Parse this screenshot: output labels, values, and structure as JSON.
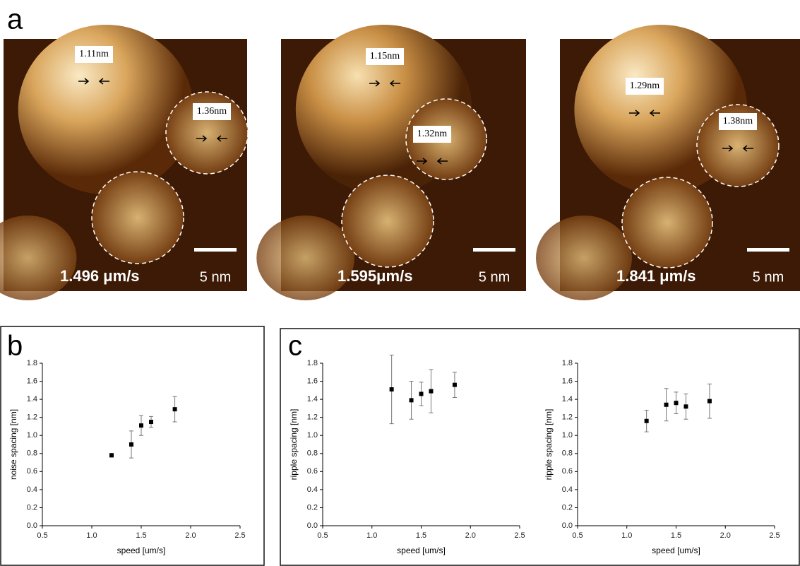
{
  "panel_labels": [
    "a",
    "b",
    "c"
  ],
  "images": [
    {
      "measures": [
        "1.11nm",
        "1.36nm"
      ],
      "speed": "1.496 μm/s",
      "scale": "5 nm"
    },
    {
      "measures": [
        "1.15nm",
        "1.32nm"
      ],
      "speed": "1.595μm/s",
      "scale": "5 nm"
    },
    {
      "measures": [
        "1.29nm",
        "1.38nm"
      ],
      "speed": "1.841 μm/s",
      "scale": "5 nm"
    }
  ],
  "chart_data": [
    {
      "type": "scatter",
      "xlabel": "speed [um/s]",
      "ylabel": "noise spacing [nm]",
      "color": "#000000",
      "x": [
        1.2,
        1.4,
        1.5,
        1.6,
        1.84
      ],
      "values": [
        0.78,
        0.9,
        1.11,
        1.15,
        1.29
      ],
      "errors": [
        0.02,
        0.15,
        0.11,
        0.06,
        0.14
      ],
      "xlim": [
        0.5,
        2.5
      ],
      "xticks": [
        0.5,
        {
          "value": 1,
          "label": "1.0"
        },
        1.5,
        {
          "value": 2,
          "label": "2.0"
        },
        2.5
      ],
      "ylim": [
        0,
        1.8
      ],
      "yticks": [
        {
          "value": 0,
          "label": "0.0"
        },
        0.2,
        0.4,
        0.6,
        0.8,
        {
          "value": 1,
          "label": "1.0"
        },
        1.2,
        1.4,
        1.6,
        1.8
      ]
    },
    {
      "type": "scatter",
      "xlabel": "speed [um/s]",
      "ylabel": "ripple spacing [nm]",
      "color": "#000000",
      "x": [
        1.2,
        1.4,
        1.5,
        1.6,
        1.84
      ],
      "values": [
        1.51,
        1.39,
        1.46,
        1.49,
        1.56
      ],
      "errors": [
        0.38,
        0.21,
        0.13,
        0.24,
        0.14
      ],
      "xlim": [
        0.5,
        2.5
      ],
      "xticks": [
        0.5,
        {
          "value": 1,
          "label": "1.0"
        },
        1.5,
        {
          "value": 2,
          "label": "2.0"
        },
        2.5
      ],
      "ylim": [
        0,
        1.8
      ],
      "yticks": [
        {
          "value": 0,
          "label": "0.0"
        },
        0.2,
        0.4,
        0.6,
        0.8,
        {
          "value": 1,
          "label": "1.0"
        },
        1.2,
        1.4,
        1.6,
        1.8
      ]
    },
    {
      "type": "scatter",
      "xlabel": "speed [um/s]",
      "ylabel": "ripple spacing [nm]",
      "color": "#000000",
      "x": [
        1.2,
        1.4,
        1.5,
        1.6,
        1.84
      ],
      "values": [
        1.16,
        1.34,
        1.36,
        1.32,
        1.38
      ],
      "errors": [
        0.12,
        0.18,
        0.12,
        0.14,
        0.19
      ],
      "xlim": [
        0.5,
        2.5
      ],
      "xticks": [
        0.5,
        {
          "value": 1,
          "label": "1.0"
        },
        1.5,
        {
          "value": 2,
          "label": "2.0"
        },
        2.5
      ],
      "ylim": [
        0,
        1.8
      ],
      "yticks": [
        {
          "value": 0,
          "label": "0.0"
        },
        0.2,
        0.4,
        0.6,
        0.8,
        {
          "value": 1,
          "label": "1.0"
        },
        1.2,
        1.4,
        1.6,
        1.8
      ]
    }
  ]
}
